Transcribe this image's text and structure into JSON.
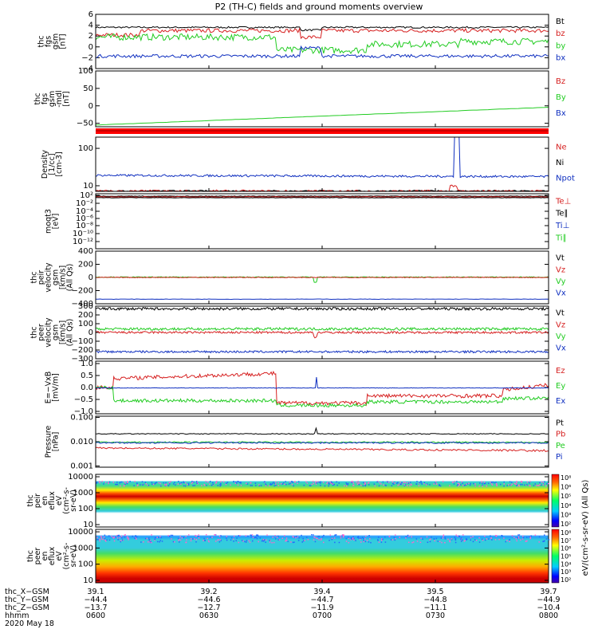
{
  "title": "P2 (TH-C) fields and ground moments overview",
  "chart_data": [
    {
      "type": "line",
      "ylabel": [
        "thc",
        "fgs",
        "gsm",
        "[nT]"
      ],
      "yticks": [
        "6",
        "4",
        "2",
        "0",
        "−2",
        "−4"
      ],
      "ylim": [
        -4,
        6
      ],
      "legend": [
        {
          "label": "Bt",
          "color": "#000000"
        },
        {
          "label": "bz",
          "color": "#d62020"
        },
        {
          "label": "by",
          "color": "#22cc22"
        },
        {
          "label": "bx",
          "color": "#1030c0"
        }
      ],
      "series_approx": {
        "Bt": 3.6,
        "bz": 3.2,
        "by": 0.8,
        "bx": -1.7
      }
    },
    {
      "type": "line",
      "ylabel": [
        "thc",
        "fgs",
        "gsm",
        "-mdl",
        "[nT]"
      ],
      "yticks": [
        "100",
        "50",
        "0",
        "−50"
      ],
      "ylim": [
        -60,
        100
      ],
      "legend": [
        {
          "label": "Bz",
          "color": "#d62020"
        },
        {
          "label": "By",
          "color": "#22cc22"
        },
        {
          "label": "Bx",
          "color": "#1030c0"
        }
      ],
      "series_approx": {
        "By": {
          "start": -55,
          "end": -4
        }
      }
    },
    {
      "type": "line",
      "ylabel": [
        "Density",
        "[1/cc]",
        "[cm-3]"
      ],
      "yscale": "log",
      "yticks": [
        "100",
        "10"
      ],
      "legend": [
        {
          "label": "Ne",
          "color": "#d62020"
        },
        {
          "label": "Ni",
          "color": "#000000"
        },
        {
          "label": "Npot",
          "color": "#1030c0"
        }
      ],
      "series_approx": {
        "Npot": 19,
        "Ni": 7,
        "Ne": 7,
        "Npot_spike": 200
      }
    },
    {
      "type": "line",
      "ylabel": [
        "moqt3",
        "[eV]"
      ],
      "yscale": "log",
      "yticks": [
        "10²",
        "10⁻²",
        "10⁻⁴",
        "10⁻⁶",
        "10⁻⁸",
        "10⁻¹⁰",
        "10⁻¹²"
      ],
      "legend": [
        {
          "label": "Te⊥",
          "color": "#d62020"
        },
        {
          "label": "Te∥",
          "color": "#000000"
        },
        {
          "label": "Ti⊥",
          "color": "#1030c0"
        },
        {
          "label": "Ti∥",
          "color": "#22cc22"
        }
      ]
    },
    {
      "type": "line",
      "ylabel": [
        "thc",
        "peir",
        "velocity",
        "gsm",
        "[km/s]",
        "(All Qs)"
      ],
      "yticks": [
        "400",
        "200",
        "0",
        "−200",
        "−400"
      ],
      "ylim": [
        -400,
        400
      ],
      "legend": [
        {
          "label": "Vt",
          "color": "#000000"
        },
        {
          "label": "Vz",
          "color": "#d62020"
        },
        {
          "label": "Vy",
          "color": "#22cc22"
        },
        {
          "label": "Vx",
          "color": "#1030c0"
        }
      ],
      "series_approx": {
        "Vz": 0,
        "Vy": 5,
        "Vx": -330
      }
    },
    {
      "type": "line",
      "ylabel": [
        "thc",
        "peer",
        "velocity",
        "gsm",
        "[km/s]",
        "(All Qs)"
      ],
      "yticks": [
        "300",
        "200",
        "100",
        "0",
        "−100",
        "−200",
        "−300"
      ],
      "ylim": [
        -300,
        300
      ],
      "legend": [
        {
          "label": "Vt",
          "color": "#000000"
        },
        {
          "label": "Vz",
          "color": "#d62020"
        },
        {
          "label": "Vy",
          "color": "#22cc22"
        },
        {
          "label": "Vx",
          "color": "#1030c0"
        }
      ],
      "series_approx": {
        "Vt": 270,
        "Vy": 40,
        "Vz": 0,
        "Vx": -220
      }
    },
    {
      "type": "line",
      "ylabel": [
        "E=−VxB",
        "[mV/m]"
      ],
      "yticks": [
        "1.0",
        "0.5",
        "0.0",
        "−0.5",
        "−1.0"
      ],
      "ylim": [
        -1,
        1
      ],
      "legend": [
        {
          "label": "Ez",
          "color": "#d62020"
        },
        {
          "label": "Ey",
          "color": "#22cc22"
        },
        {
          "label": "Ex",
          "color": "#1030c0"
        }
      ]
    },
    {
      "type": "line",
      "ylabel": [
        "Pressure",
        "[nPa]"
      ],
      "yscale": "log",
      "yticks": [
        "0.100",
        "0.010",
        "0.001"
      ],
      "legend": [
        {
          "label": "Pt",
          "color": "#000000"
        },
        {
          "label": "Pb",
          "color": "#d62020"
        },
        {
          "label": "Pe",
          "color": "#22cc22"
        },
        {
          "label": "Pi",
          "color": "#1030c0"
        }
      ],
      "series_approx": {
        "Pt": 0.02,
        "Pi": 0.009,
        "Pe": 0.009,
        "Pb": 0.005
      }
    },
    {
      "type": "heatmap",
      "ylabel": [
        "thc",
        "peir",
        "en",
        "eflux",
        "eV",
        "(cm²-s-",
        "sr-eV)"
      ],
      "yscale": "log",
      "yticks": [
        "10000",
        "1000",
        "100",
        "10"
      ],
      "colorbar_ticks": [
        "10⁸",
        "10⁶",
        "10⁵",
        "10⁴",
        "10³",
        "10²"
      ],
      "colorbar_label": "eV/(cm²-s-sr-eV) (All Qs)"
    },
    {
      "type": "heatmap",
      "ylabel": [
        "thc",
        "peer",
        "en",
        "eflux",
        "eV",
        "(cm²-s-",
        "sr-eV)"
      ],
      "yscale": "log",
      "yticks": [
        "10000",
        "1000",
        "100",
        "10"
      ],
      "colorbar_ticks": [
        "10⁸",
        "10⁷",
        "10⁶",
        "10⁵",
        "10⁴",
        "10³",
        "10²"
      ],
      "colorbar_label": "eV/(cm²-s-sr-eV) (All Qs)"
    }
  ],
  "xaxis": {
    "rows": [
      {
        "label": "thc_X−GSM",
        "values": [
          "39.1",
          "39.2",
          "39.4",
          "39.5",
          "39.7"
        ]
      },
      {
        "label": "thc_Y−GSM",
        "values": [
          "−44.4",
          "−44.6",
          "−44.7",
          "−44.8",
          "−44.9"
        ]
      },
      {
        "label": "thc_Z−GSM",
        "values": [
          "−13.7",
          "−12.7",
          "−11.9",
          "−11.1",
          "−10.4"
        ]
      },
      {
        "label": "hhmm",
        "values": [
          "0600",
          "0630",
          "0700",
          "0730",
          "0800"
        ]
      }
    ],
    "date": "2020 May 18"
  },
  "colors": {
    "red": "#d62020",
    "green": "#22cc22",
    "blue": "#1030c0",
    "black": "#000000"
  }
}
